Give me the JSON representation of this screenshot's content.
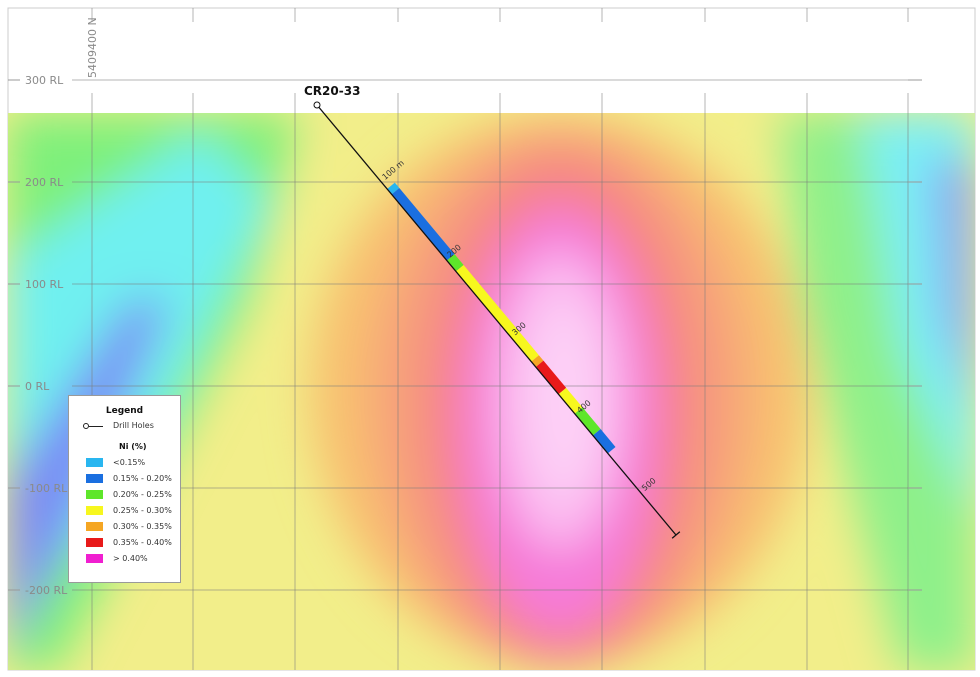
{
  "section": {
    "northing_label": "5409400 N",
    "rl_labels": [
      "300 RL",
      "200 RL",
      "100 RL",
      "0 RL",
      "-100 RL",
      "-200 RL"
    ]
  },
  "drill_hole": {
    "name": "CR20-33",
    "end_of_hole_m": 553,
    "depth_labels": [
      "100 m",
      "200",
      "300",
      "400",
      "500"
    ],
    "intervals": [
      {
        "from": 108,
        "to": 115,
        "class": "<0.15%"
      },
      {
        "from": 115,
        "to": 200,
        "class": "0.15% - 0.20%"
      },
      {
        "from": 200,
        "to": 214,
        "class": "0.20% - 0.25%"
      },
      {
        "from": 214,
        "to": 330,
        "class": "0.25% - 0.30%"
      },
      {
        "from": 330,
        "to": 337,
        "class": "0.30% - 0.35%"
      },
      {
        "from": 337,
        "to": 372,
        "class": "0.35% - 0.40%"
      },
      {
        "from": 372,
        "to": 397,
        "class": "0.25% - 0.30%"
      },
      {
        "from": 397,
        "to": 425,
        "class": "0.20% - 0.25%"
      },
      {
        "from": 425,
        "to": 448,
        "class": "0.15% - 0.20%"
      }
    ]
  },
  "legend": {
    "title": "Legend",
    "drill_holes_label": "Drill Holes",
    "ni_title": "Ni (%)",
    "classes": [
      {
        "label": "<0.15%",
        "color": "#29b6f0"
      },
      {
        "label": "0.15% - 0.20%",
        "color": "#1a6fe0"
      },
      {
        "label": "0.20% - 0.25%",
        "color": "#5ee62a"
      },
      {
        "label": "0.25% - 0.30%",
        "color": "#f7f71e"
      },
      {
        "label": "0.30% - 0.35%",
        "color": "#f5a623"
      },
      {
        "label": "0.35% - 0.40%",
        "color": "#e81a1a"
      },
      {
        "label": "> 0.40%",
        "color": "#f01fd0"
      }
    ]
  }
}
